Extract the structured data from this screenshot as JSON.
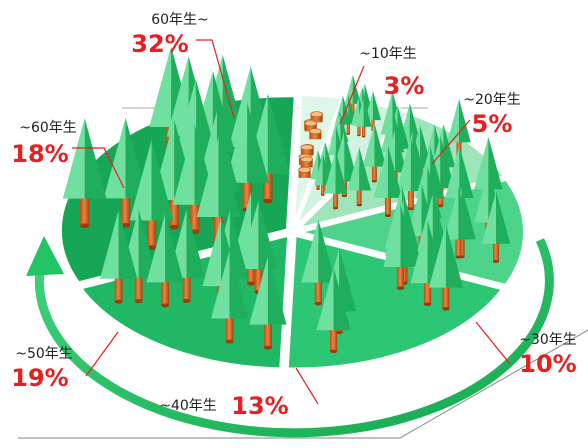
{
  "chart_data": {
    "type": "pie",
    "title": "",
    "categories": [
      "~10年生",
      "~20年生",
      "~30年生",
      "~40年生",
      "~50年生",
      "~60年生",
      "60年生~"
    ],
    "values": [
      3,
      5,
      10,
      13,
      19,
      18,
      32
    ],
    "labels": [
      {
        "age": "~10年生",
        "percent": "3%"
      },
      {
        "age": "~20年生",
        "percent": "5%"
      },
      {
        "age": "~30年生",
        "percent": "10%"
      },
      {
        "age": "~40年生",
        "percent": "13%"
      },
      {
        "age": "~50年生",
        "percent": "19%"
      },
      {
        "age": "~60年生",
        "percent": "18%"
      },
      {
        "age": "60年生~",
        "percent": "32%"
      }
    ],
    "colors": [
      "#dff7e9",
      "#d2f3df",
      "#9ee6b9",
      "#4ed48a",
      "#2cc674",
      "#21b865",
      "#17a556"
    ],
    "legend": "none"
  }
}
